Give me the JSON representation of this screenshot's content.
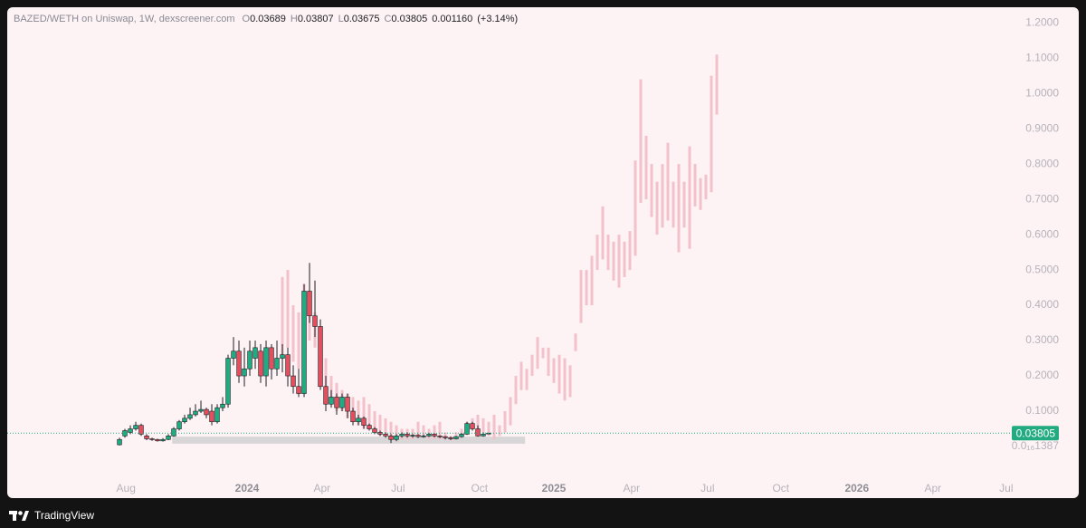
{
  "header": {
    "symbol": "BAZED/WETH on Uniswap, 1W, dexscreener.com",
    "o_label": "O",
    "o": "0.03689",
    "h_label": "H",
    "h": "0.03807",
    "l_label": "L",
    "l": "0.03675",
    "c_label": "C",
    "c": "0.03805",
    "change": "0.001160",
    "change_pct": "(+3.14%)"
  },
  "footer": "TradingView",
  "chart_data": {
    "type": "candlestick",
    "xlim": [
      -20.67,
      163.83
    ],
    "xticks": [
      {
        "value": 1.2,
        "label": "Aug"
      },
      {
        "value": 23.5,
        "label": "2024"
      },
      {
        "value": 37.3,
        "label": "Apr"
      },
      {
        "value": 51.3,
        "label": "Jul"
      },
      {
        "value": 66.3,
        "label": "Oct"
      },
      {
        "value": 80,
        "label": "2025"
      },
      {
        "value": 94.3,
        "label": "Apr"
      },
      {
        "value": 108.3,
        "label": "Jul"
      },
      {
        "value": 121.8,
        "label": "Oct"
      },
      {
        "value": 135.8,
        "label": "2026"
      },
      {
        "value": 149.8,
        "label": "Apr"
      },
      {
        "value": 163.3,
        "label": "Jul"
      }
    ],
    "ylim": [
      -0.082,
      1.244
    ],
    "yticks": [
      {
        "value": 1.387e-17,
        "label": "0.0₁₆1387"
      },
      {
        "value": 0.1,
        "label": "0.1000"
      },
      {
        "value": 0.2,
        "label": "0.2000"
      },
      {
        "value": 0.3,
        "label": "0.3000"
      },
      {
        "value": 0.4,
        "label": "0.4000"
      },
      {
        "value": 0.5,
        "label": "0.5000"
      },
      {
        "value": 0.6,
        "label": "0.6000"
      },
      {
        "value": 0.7,
        "label": "0.7000"
      },
      {
        "value": 0.8,
        "label": "0.8000"
      },
      {
        "value": 0.9,
        "label": "0.9000"
      },
      {
        "value": 1,
        "label": "1.0000"
      },
      {
        "value": 1.1,
        "label": "1.1000"
      },
      {
        "value": 1.2,
        "label": "1.2000"
      }
    ],
    "grid": false,
    "up_color": "#22ab80",
    "down_color": "#e0505f",
    "projection_color": "#f3c1cb",
    "zone_color": "#d9d6d8",
    "last_price": 0.03805,
    "zone": {
      "x": [
        9.7,
        74.7
      ],
      "y": [
        0.008,
        0.028
      ]
    },
    "candles": {
      "x": [
        0,
        1,
        2,
        3,
        4,
        5,
        6,
        7,
        8,
        9,
        10,
        11,
        12,
        13,
        14,
        15,
        16,
        17,
        18,
        19,
        20,
        21,
        22,
        23,
        24,
        25,
        26,
        27,
        28,
        29,
        30,
        31,
        32,
        33,
        34,
        35,
        36,
        37,
        38,
        39,
        40,
        41,
        42,
        43,
        44,
        45,
        46,
        47,
        48,
        49,
        50,
        51,
        52,
        53,
        54,
        55,
        56,
        57,
        58,
        59,
        60,
        61,
        62,
        63,
        64,
        65,
        66,
        67,
        68
      ],
      "open": [
        0.005,
        0.03,
        0.04,
        0.05,
        0.06,
        0.03,
        0.022,
        0.02,
        0.016,
        0.02,
        0.03,
        0.05,
        0.07,
        0.08,
        0.09,
        0.1,
        0.105,
        0.1,
        0.07,
        0.11,
        0.12,
        0.25,
        0.27,
        0.2,
        0.22,
        0.25,
        0.27,
        0.2,
        0.28,
        0.22,
        0.25,
        0.26,
        0.2,
        0.17,
        0.15,
        0.44,
        0.37,
        0.34,
        0.17,
        0.12,
        0.14,
        0.11,
        0.14,
        0.1,
        0.07,
        0.08,
        0.06,
        0.05,
        0.04,
        0.035,
        0.03,
        0.02,
        0.03,
        0.035,
        0.03,
        0.032,
        0.028,
        0.03,
        0.035,
        0.03,
        0.028,
        0.025,
        0.022,
        0.028,
        0.035,
        0.065,
        0.05,
        0.03,
        0.03689
      ],
      "high": [
        0.025,
        0.05,
        0.06,
        0.07,
        0.065,
        0.035,
        0.025,
        0.022,
        0.024,
        0.035,
        0.055,
        0.075,
        0.09,
        0.11,
        0.12,
        0.13,
        0.11,
        0.12,
        0.12,
        0.14,
        0.26,
        0.31,
        0.3,
        0.28,
        0.3,
        0.3,
        0.29,
        0.3,
        0.29,
        0.3,
        0.29,
        0.28,
        0.23,
        0.22,
        0.46,
        0.52,
        0.47,
        0.36,
        0.2,
        0.16,
        0.15,
        0.15,
        0.15,
        0.11,
        0.09,
        0.085,
        0.065,
        0.055,
        0.045,
        0.04,
        0.035,
        0.035,
        0.04,
        0.04,
        0.035,
        0.035,
        0.034,
        0.038,
        0.037,
        0.032,
        0.03,
        0.028,
        0.03,
        0.038,
        0.07,
        0.07,
        0.06,
        0.04,
        0.03807
      ],
      "low": [
        0.003,
        0.025,
        0.035,
        0.045,
        0.03,
        0.018,
        0.016,
        0.014,
        0.014,
        0.018,
        0.028,
        0.045,
        0.065,
        0.075,
        0.085,
        0.095,
        0.08,
        0.06,
        0.065,
        0.1,
        0.11,
        0.23,
        0.18,
        0.17,
        0.2,
        0.22,
        0.18,
        0.17,
        0.19,
        0.2,
        0.21,
        0.17,
        0.15,
        0.14,
        0.14,
        0.35,
        0.31,
        0.16,
        0.1,
        0.11,
        0.09,
        0.1,
        0.08,
        0.06,
        0.06,
        0.05,
        0.045,
        0.035,
        0.03,
        0.025,
        0.01,
        0.015,
        0.025,
        0.025,
        0.025,
        0.024,
        0.025,
        0.027,
        0.026,
        0.024,
        0.02,
        0.018,
        0.02,
        0.025,
        0.033,
        0.045,
        0.028,
        0.028,
        0.03675
      ],
      "close": [
        0.02,
        0.045,
        0.05,
        0.06,
        0.035,
        0.022,
        0.02,
        0.016,
        0.02,
        0.03,
        0.05,
        0.07,
        0.08,
        0.09,
        0.1,
        0.105,
        0.09,
        0.07,
        0.11,
        0.12,
        0.25,
        0.27,
        0.2,
        0.22,
        0.27,
        0.28,
        0.2,
        0.28,
        0.22,
        0.25,
        0.26,
        0.2,
        0.17,
        0.15,
        0.44,
        0.37,
        0.34,
        0.17,
        0.12,
        0.14,
        0.11,
        0.14,
        0.1,
        0.07,
        0.08,
        0.06,
        0.05,
        0.04,
        0.035,
        0.03,
        0.02,
        0.03,
        0.035,
        0.03,
        0.032,
        0.028,
        0.03,
        0.035,
        0.03,
        0.028,
        0.025,
        0.022,
        0.028,
        0.035,
        0.065,
        0.05,
        0.03,
        0.035,
        0.03805
      ]
    },
    "projection": {
      "x": [
        30,
        31,
        32,
        33,
        34,
        35,
        36,
        37,
        38,
        39,
        40,
        41,
        42,
        43,
        44,
        45,
        46,
        47,
        48,
        49,
        50,
        51,
        52,
        53,
        54,
        55,
        56,
        57,
        58,
        59,
        60,
        61,
        62,
        63,
        64,
        65,
        66,
        67,
        68,
        69,
        70,
        71,
        72,
        73,
        74,
        75,
        76,
        77,
        78,
        79,
        80,
        81,
        82,
        83,
        84,
        85,
        86,
        87,
        88,
        89,
        90,
        91,
        92,
        93,
        94,
        95,
        96,
        97,
        98,
        99,
        100,
        101,
        102,
        103,
        104,
        105,
        106,
        107,
        108,
        109,
        110
      ],
      "low": [
        0.26,
        0.28,
        0.24,
        0.22,
        0.3,
        0.3,
        0.28,
        0.22,
        0.15,
        0.12,
        0.1,
        0.1,
        0.08,
        0.07,
        0.06,
        0.05,
        0.05,
        0.04,
        0.03,
        0.03,
        0.03,
        0.02,
        0.02,
        0.02,
        0.02,
        0.03,
        0.03,
        0.02,
        0.02,
        0.02,
        0.02,
        0.02,
        0.02,
        0.03,
        0.04,
        0.05,
        0.05,
        0.04,
        0.03,
        0.02,
        0.03,
        0.04,
        0.06,
        0.12,
        0.16,
        0.16,
        0.2,
        0.22,
        0.25,
        0.2,
        0.18,
        0.15,
        0.13,
        0.14,
        0.27,
        0.35,
        0.4,
        0.4,
        0.5,
        0.53,
        0.5,
        0.47,
        0.45,
        0.48,
        0.5,
        0.54,
        0.69,
        0.7,
        0.65,
        0.6,
        0.62,
        0.64,
        0.62,
        0.55,
        0.62,
        0.56,
        0.68,
        0.67,
        0.7,
        0.72,
        0.94
      ],
      "high": [
        0.48,
        0.5,
        0.4,
        0.38,
        0.46,
        0.42,
        0.38,
        0.3,
        0.25,
        0.2,
        0.18,
        0.16,
        0.15,
        0.14,
        0.13,
        0.14,
        0.12,
        0.1,
        0.09,
        0.08,
        0.07,
        0.06,
        0.05,
        0.05,
        0.05,
        0.07,
        0.06,
        0.05,
        0.06,
        0.07,
        0.04,
        0.03,
        0.04,
        0.05,
        0.07,
        0.08,
        0.09,
        0.08,
        0.07,
        0.09,
        0.06,
        0.1,
        0.14,
        0.2,
        0.24,
        0.22,
        0.26,
        0.31,
        0.28,
        0.28,
        0.25,
        0.26,
        0.25,
        0.23,
        0.32,
        0.5,
        0.5,
        0.54,
        0.6,
        0.68,
        0.6,
        0.58,
        0.6,
        0.58,
        0.61,
        0.81,
        1.04,
        0.88,
        0.8,
        0.75,
        0.8,
        0.86,
        0.75,
        0.8,
        0.75,
        0.85,
        0.8,
        0.76,
        0.77,
        1.05,
        1.11
      ]
    }
  }
}
